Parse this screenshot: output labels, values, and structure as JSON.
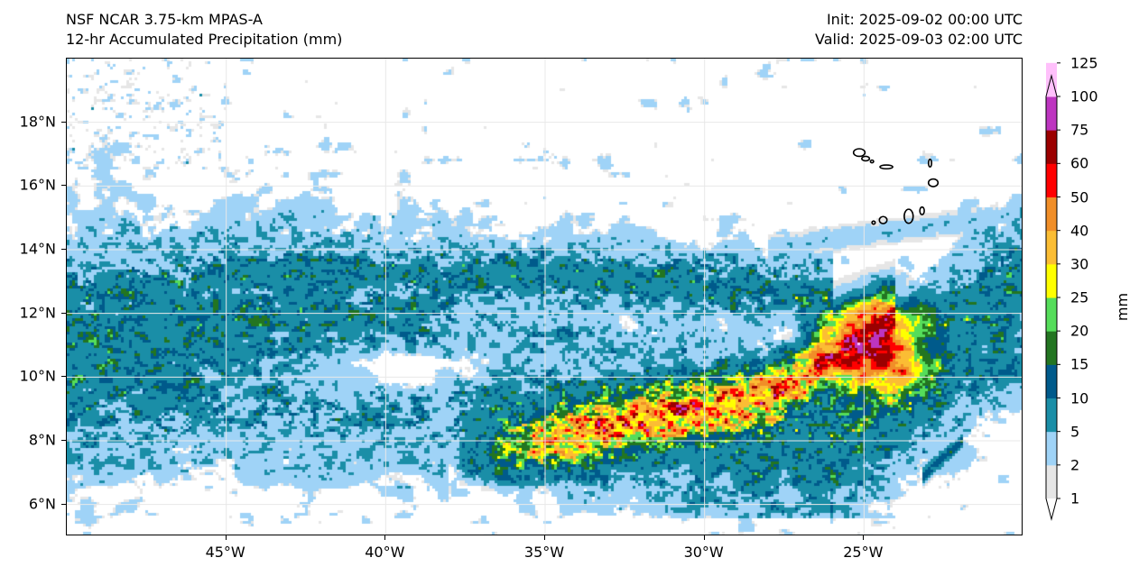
{
  "header": {
    "model": "NSF NCAR 3.75-km MPAS-A",
    "field": "12-hr Accumulated Precipitation (mm)",
    "init": "Init: 2025-09-02 00:00 UTC",
    "valid": "Valid: 2025-09-03 02:00 UTC"
  },
  "map": {
    "lon_range": [
      -50,
      -20
    ],
    "lat_range": [
      5,
      20
    ],
    "lat_ticks": [
      {
        "value": 6,
        "label": "6°N"
      },
      {
        "value": 8,
        "label": "8°N"
      },
      {
        "value": 10,
        "label": "10°N"
      },
      {
        "value": 12,
        "label": "12°N"
      },
      {
        "value": 14,
        "label": "14°N"
      },
      {
        "value": 16,
        "label": "16°N"
      },
      {
        "value": 18,
        "label": "18°N"
      }
    ],
    "lon_ticks": [
      {
        "value": -45,
        "label": "45°W"
      },
      {
        "value": -40,
        "label": "40°W"
      },
      {
        "value": -35,
        "label": "35°W"
      },
      {
        "value": -30,
        "label": "30°W"
      },
      {
        "value": -25,
        "label": "25°W"
      }
    ],
    "gridline_color": "#e8e8e8",
    "coastline_color": "#000000",
    "islands": [
      {
        "name": "Santo Antão",
        "lon": -25.15,
        "lat": 17.05,
        "rx": 0.18,
        "ry": 0.12
      },
      {
        "name": "São Vicente",
        "lon": -24.95,
        "lat": 16.86,
        "rx": 0.12,
        "ry": 0.07
      },
      {
        "name": "Santa Luzia",
        "lon": -24.75,
        "lat": 16.77,
        "rx": 0.05,
        "ry": 0.04
      },
      {
        "name": "São Nicolau",
        "lon": -24.3,
        "lat": 16.6,
        "rx": 0.2,
        "ry": 0.06
      },
      {
        "name": "Sal",
        "lon": -22.93,
        "lat": 16.72,
        "rx": 0.05,
        "ry": 0.12
      },
      {
        "name": "Boa Vista",
        "lon": -22.83,
        "lat": 16.1,
        "rx": 0.15,
        "ry": 0.12
      },
      {
        "name": "Brava",
        "lon": -24.7,
        "lat": 14.85,
        "rx": 0.05,
        "ry": 0.05
      },
      {
        "name": "Fogo",
        "lon": -24.4,
        "lat": 14.93,
        "rx": 0.12,
        "ry": 0.11
      },
      {
        "name": "Santiago",
        "lon": -23.6,
        "lat": 15.05,
        "rx": 0.14,
        "ry": 0.22
      },
      {
        "name": "Maio",
        "lon": -23.18,
        "lat": 15.22,
        "rx": 0.07,
        "ry": 0.12
      }
    ]
  },
  "colorbar": {
    "unit": "mm",
    "levels": [
      {
        "value": 1,
        "label": "1",
        "color": "#e6e6e6"
      },
      {
        "value": 2,
        "label": "2",
        "color": "#9fd3f7"
      },
      {
        "value": 5,
        "label": "5",
        "color": "#1a8ea7"
      },
      {
        "value": 10,
        "label": "10",
        "color": "#005a8b"
      },
      {
        "value": 15,
        "label": "15",
        "color": "#237521"
      },
      {
        "value": 20,
        "label": "20",
        "color": "#55dd5a"
      },
      {
        "value": 25,
        "label": "25",
        "color": "#ffff00"
      },
      {
        "value": 30,
        "label": "30",
        "color": "#fbbd34"
      },
      {
        "value": 40,
        "label": "40",
        "color": "#f08e28"
      },
      {
        "value": 50,
        "label": "50",
        "color": "#ff0000"
      },
      {
        "value": 60,
        "label": "60",
        "color": "#9b0000"
      },
      {
        "value": 75,
        "label": "75",
        "color": "#bd35c0"
      },
      {
        "value": 100,
        "label": "100",
        "color": "#ffc0fb"
      },
      {
        "value": 125,
        "label": "125",
        "color": "#ffc0fb"
      }
    ]
  }
}
